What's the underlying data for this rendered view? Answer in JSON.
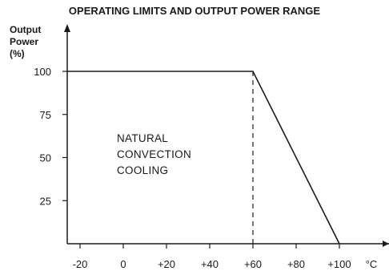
{
  "chart_data": {
    "type": "line",
    "title": "OPERATING LIMITS AND OUTPUT POWER RANGE",
    "ylabel": [
      "Output",
      "Power",
      "(%)"
    ],
    "xunit": "°C",
    "xlim": [
      -30,
      110
    ],
    "ylim": [
      0,
      115
    ],
    "x_ticks": [
      -20,
      0,
      20,
      40,
      60,
      80,
      100
    ],
    "x_tick_labels": [
      "-20",
      "0",
      "+20",
      "+40",
      "+60",
      "+80",
      "+100"
    ],
    "y_ticks": [
      25,
      50,
      75,
      100
    ],
    "y_tick_labels": [
      "25",
      "50",
      "75",
      "100"
    ],
    "series": [
      {
        "x": [
          -30,
          60,
          100
        ],
        "y": [
          100,
          100,
          0
        ]
      }
    ],
    "reference_line": {
      "x": 60,
      "y_from": 0,
      "y_to": 100,
      "style": "dashed"
    },
    "annotation": [
      "NATURAL",
      "CONVECTION",
      "COOLING"
    ],
    "grid": false,
    "legend": "none"
  }
}
